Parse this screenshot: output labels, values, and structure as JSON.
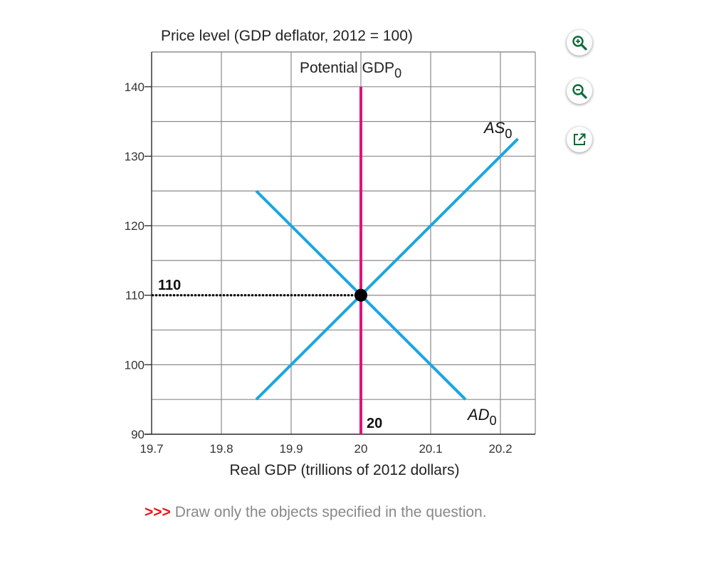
{
  "chart_data": {
    "type": "line",
    "ylabel": "Price level (GDP deflator, 2012 = 100)",
    "xlabel": "Real GDP (trillions of 2012 dollars)",
    "xlim": [
      19.7,
      20.25
    ],
    "ylim": [
      90,
      145
    ],
    "x_ticks": [
      "19.7",
      "19.8",
      "19.9",
      "20",
      "20.1",
      "20.2"
    ],
    "y_ticks": [
      "90",
      "100",
      "110",
      "120",
      "130",
      "140"
    ],
    "grid": true,
    "series": [
      {
        "name": "AS",
        "subscript": "0",
        "color": "#1aa6e0",
        "points": [
          [
            19.85,
            95
          ],
          [
            20.225,
            132.5
          ]
        ]
      },
      {
        "name": "AD",
        "subscript": "0",
        "color": "#1aa6e0",
        "points": [
          [
            19.85,
            125
          ],
          [
            20.15,
            95
          ]
        ]
      }
    ],
    "vertical_line": {
      "label": "Potential GDP",
      "subscript": "0",
      "x": 20,
      "y_range": [
        90,
        140
      ],
      "color": "#e0147a"
    },
    "equilibrium": {
      "x": 20,
      "y": 110,
      "x_label": "20",
      "y_label": "110"
    }
  },
  "toolbar": {
    "zoom_in": "zoom-in-icon",
    "zoom_out": "zoom-out-icon",
    "popout": "popout-icon",
    "accent": "#0a6a35"
  },
  "note": {
    "arrows": ">>>",
    "text": "Draw only the objects specified in the question."
  }
}
